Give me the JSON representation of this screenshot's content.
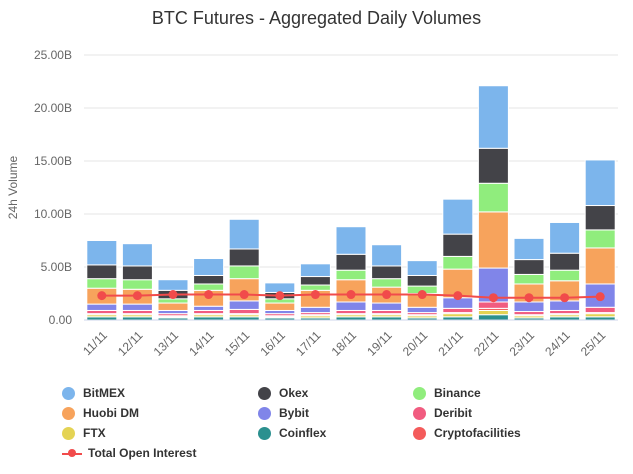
{
  "chart_data": {
    "type": "bar",
    "stacked": true,
    "title": "BTC Futures - Aggregated Daily Volumes",
    "ylabel": "24h Volume",
    "xlabel": "",
    "ylim": [
      0,
      25
    ],
    "yticks": [
      "0.00",
      "5.00B",
      "10.00B",
      "15.00B",
      "20.00B",
      "25.00B"
    ],
    "ytick_values": [
      0,
      5,
      10,
      15,
      20,
      25
    ],
    "grid": true,
    "legend_position": "bottom",
    "categories": [
      "11/11",
      "12/11",
      "13/11",
      "14/11",
      "15/11",
      "16/11",
      "17/11",
      "18/11",
      "19/11",
      "20/11",
      "21/11",
      "22/11",
      "23/11",
      "24/11",
      "25/11"
    ],
    "series": [
      {
        "name": "Coinflex",
        "color": "#2b908f",
        "values": [
          0.3,
          0.3,
          0.2,
          0.3,
          0.3,
          0.2,
          0.2,
          0.3,
          0.3,
          0.2,
          0.3,
          0.5,
          0.2,
          0.3,
          0.3
        ]
      },
      {
        "name": "FTX",
        "color": "#e4d354",
        "values": [
          0.2,
          0.2,
          0.1,
          0.2,
          0.2,
          0.1,
          0.2,
          0.2,
          0.2,
          0.2,
          0.3,
          0.4,
          0.2,
          0.2,
          0.3
        ]
      },
      {
        "name": "Cryptofacilities",
        "color": "#f45b5b",
        "values": [
          0.1,
          0.1,
          0.1,
          0.1,
          0.1,
          0.1,
          0.1,
          0.1,
          0.1,
          0.1,
          0.1,
          0.2,
          0.1,
          0.1,
          0.1
        ]
      },
      {
        "name": "Deribit",
        "color": "#f15c80",
        "values": [
          0.3,
          0.3,
          0.2,
          0.3,
          0.4,
          0.2,
          0.2,
          0.3,
          0.3,
          0.2,
          0.4,
          0.6,
          0.3,
          0.3,
          0.5
        ]
      },
      {
        "name": "Bybit",
        "color": "#8085e9",
        "values": [
          0.6,
          0.6,
          0.3,
          0.4,
          0.8,
          0.3,
          0.5,
          0.8,
          0.7,
          0.5,
          1.0,
          3.2,
          0.9,
          0.9,
          2.2
        ]
      },
      {
        "name": "Huobi DM",
        "color": "#f7a35c",
        "values": [
          1.5,
          1.4,
          0.7,
          1.5,
          2.1,
          0.7,
          1.6,
          2.1,
          1.5,
          1.3,
          2.7,
          5.3,
          1.7,
          1.9,
          3.4
        ]
      },
      {
        "name": "Binance",
        "color": "#90ed7d",
        "values": [
          0.9,
          0.9,
          0.4,
          0.6,
          1.2,
          0.4,
          0.5,
          0.9,
          0.8,
          0.7,
          1.2,
          2.7,
          0.9,
          1.0,
          1.7
        ]
      },
      {
        "name": "Okex",
        "color": "#434348",
        "values": [
          1.3,
          1.3,
          0.8,
          0.8,
          1.6,
          0.6,
          0.8,
          1.5,
          1.2,
          1.0,
          2.1,
          3.3,
          1.4,
          1.6,
          2.3
        ]
      },
      {
        "name": "BitMEX",
        "color": "#7cb5ec",
        "values": [
          2.3,
          2.1,
          1.0,
          1.6,
          2.8,
          0.9,
          1.2,
          2.6,
          2.0,
          1.4,
          3.3,
          5.9,
          2.0,
          2.9,
          4.3
        ]
      }
    ],
    "line_series": {
      "name": "Total Open Interest",
      "color": "#f14b4b",
      "values": [
        2.3,
        2.3,
        2.4,
        2.4,
        2.4,
        2.3,
        2.4,
        2.4,
        2.4,
        2.4,
        2.3,
        2.1,
        2.1,
        2.1,
        2.2
      ]
    },
    "legend_order": [
      "BitMEX",
      "Okex",
      "Binance",
      "Huobi DM",
      "Bybit",
      "Deribit",
      "FTX",
      "Coinflex",
      "Cryptofacilities",
      "Total Open Interest"
    ]
  }
}
